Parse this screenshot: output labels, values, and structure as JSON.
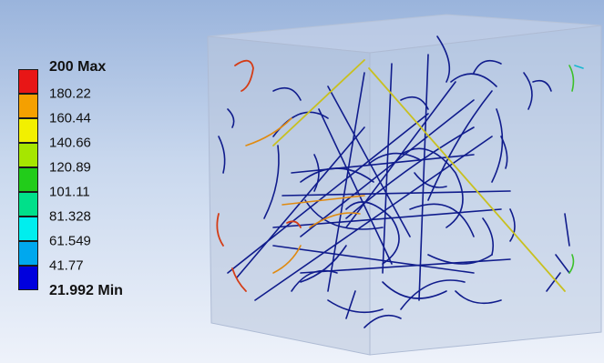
{
  "legend": {
    "max_label": "200 Max",
    "min_label": "21.992 Min",
    "levels": [
      "180.22",
      "160.44",
      "140.66",
      "120.89",
      "101.11",
      "81.328",
      "61.549",
      "41.77"
    ],
    "colors": [
      "#e81616",
      "#f5a000",
      "#f2f000",
      "#a6e600",
      "#22cc1a",
      "#00e08a",
      "#00eeee",
      "#00a8ee",
      "#0000dd"
    ]
  },
  "scene": {
    "object": "transparent-box",
    "content": "fiber-streamlines",
    "dominant_color": "#101c8c"
  }
}
